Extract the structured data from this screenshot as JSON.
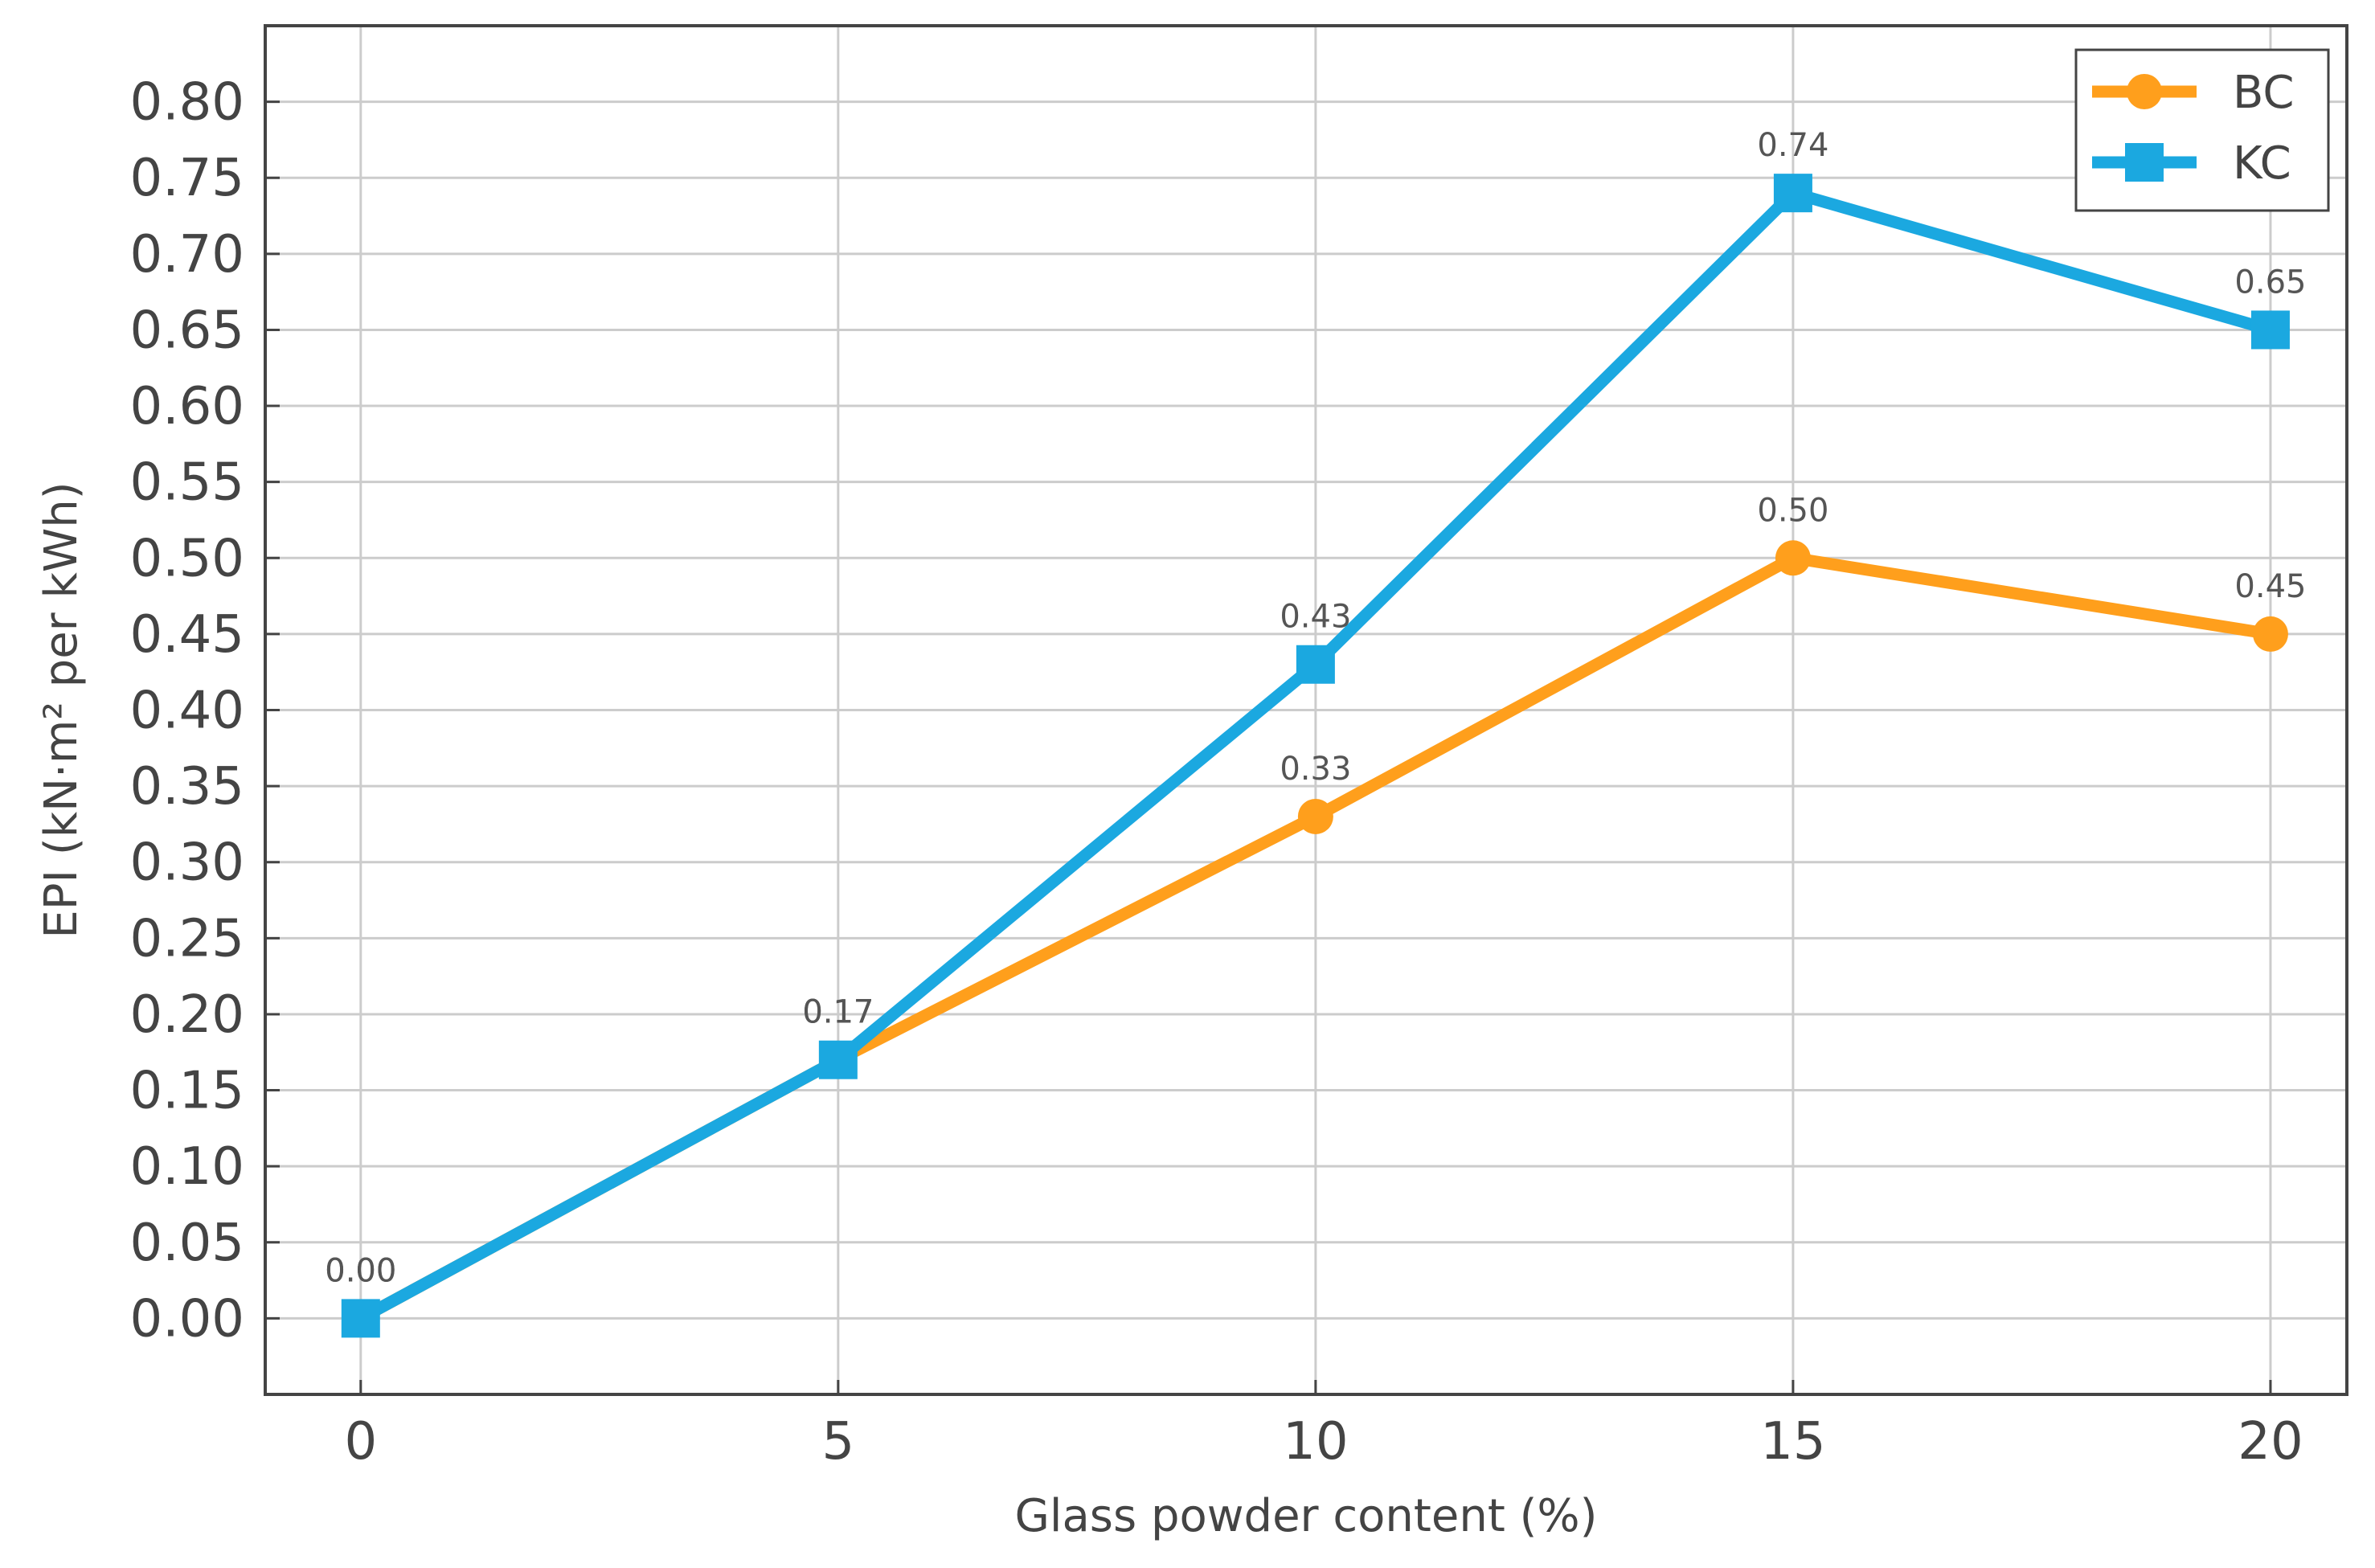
{
  "chart_data": {
    "type": "line",
    "title": "",
    "xlabel": "Glass powder content (%)",
    "ylabel": "EPI (kN·m² per kWh)",
    "x": [
      0,
      5,
      10,
      15,
      20
    ],
    "x_ticks": [
      "0",
      "5",
      "10",
      "15",
      "20"
    ],
    "y_ticks": [
      "0.00",
      "0.05",
      "0.10",
      "0.15",
      "0.20",
      "0.25",
      "0.30",
      "0.35",
      "0.40",
      "0.45",
      "0.50",
      "0.55",
      "0.60",
      "0.65",
      "0.70",
      "0.75",
      "0.80"
    ],
    "xlim": [
      -1,
      20.8
    ],
    "ylim": [
      -0.05,
      0.85
    ],
    "grid": true,
    "legend_position": "top-right",
    "series": [
      {
        "name": "BC",
        "color": "#ff9f1c",
        "marker": "circle",
        "values": [
          0.0,
          0.17,
          0.33,
          0.5,
          0.45
        ],
        "labels": [
          "0.00",
          "0.17",
          "0.33",
          "0.50",
          "0.45"
        ]
      },
      {
        "name": "KC",
        "color": "#1ba8e0",
        "marker": "square",
        "values": [
          0.0,
          0.17,
          0.43,
          0.74,
          0.65
        ],
        "labels": [
          "0.00",
          "0.17",
          "0.43",
          "0.74",
          "0.65"
        ]
      }
    ]
  }
}
